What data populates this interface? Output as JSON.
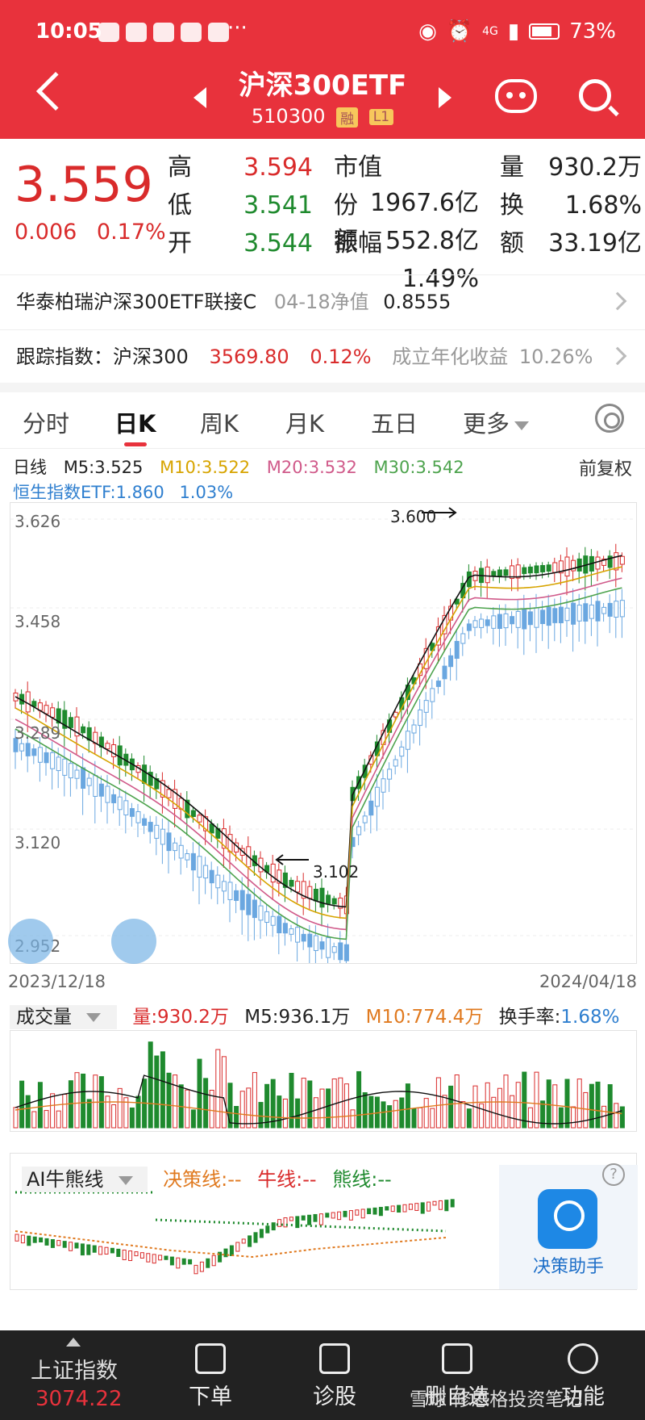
{
  "status": {
    "time": "10:05",
    "dots": "···",
    "signal": "4G",
    "battery": "73%"
  },
  "nav": {
    "title": "沪深300ETF",
    "code": "510300",
    "tag1": "融",
    "tag2": "L1"
  },
  "quote": {
    "price": "3.559",
    "change": "0.006",
    "pct": "0.17%",
    "stats": [
      {
        "label": "高",
        "value": "3.594",
        "color": "red"
      },
      {
        "label": "低",
        "value": "3.541",
        "color": "green"
      },
      {
        "label": "开",
        "value": "3.544",
        "color": "green"
      }
    ],
    "stats2": [
      {
        "label": "市值",
        "value": "1967.6亿"
      },
      {
        "label": "份额",
        "value": "552.8亿"
      },
      {
        "label": "振幅",
        "value": "1.49%"
      }
    ],
    "stats3": [
      {
        "label": "量",
        "value": "930.2万"
      },
      {
        "label": "换",
        "value": "1.68%"
      },
      {
        "label": "额",
        "value": "33.19亿"
      }
    ]
  },
  "linked": {
    "name": "华泰柏瑞沪深300ETF联接C",
    "nav_label": "04-18净值",
    "nav_value": "0.8555"
  },
  "tracking": {
    "label": "跟踪指数：",
    "index": "沪深300",
    "value": "3569.80",
    "pct": "0.12%",
    "annual_label": "成立年化收益",
    "annual": "10.26%"
  },
  "tabs": [
    "分时",
    "日K",
    "周K",
    "月K",
    "五日",
    "更多"
  ],
  "ma": {
    "line": "日线",
    "m5": "M5:3.525",
    "m10": "M10:3.522",
    "m20": "M20:3.532",
    "m30": "M30:3.542",
    "fuquan": "前复权"
  },
  "hk": {
    "name": "恒生指数ETF:1.860",
    "pct": "1.03%"
  },
  "chart": {
    "y_ticks": [
      "3.626",
      "3.458",
      "3.289",
      "3.120",
      "2.952"
    ],
    "high_label": "3.600",
    "low_label": "3.102",
    "start_date": "2023/12/18",
    "end_date": "2024/04/18"
  },
  "volume": {
    "title": "成交量",
    "vol": "量:930.2万",
    "m5": "M5:936.1万",
    "m10": "M10:774.4万",
    "turnover_label": "换手率:",
    "turnover": "1.68%"
  },
  "ai": {
    "title": "AI牛熊线",
    "decision": "决策线:--",
    "bull": "牛线:--",
    "bear": "熊线:--",
    "assistant": "决策助手",
    "help": "?"
  },
  "bottom": {
    "index_label": "上证指数",
    "index_value": "3074.22",
    "items": [
      "下单",
      "诊股",
      "删自选",
      "功能"
    ],
    "watermark": "雪球 修思格投资笔记"
  },
  "colors": {
    "header": "#e8323c",
    "up": "#d92b2b",
    "down": "#1f8a2e",
    "k_down": "#6aa7e0"
  }
}
